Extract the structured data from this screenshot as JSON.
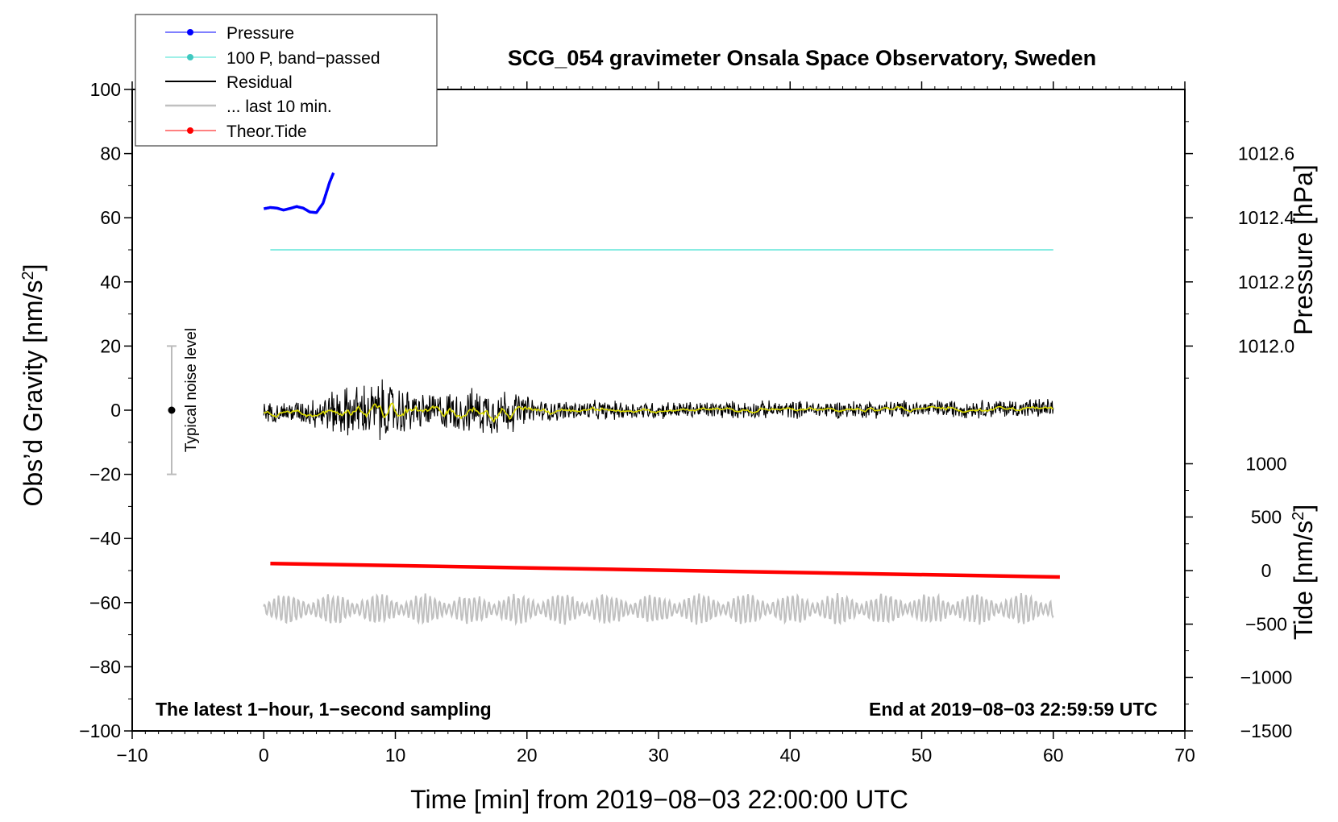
{
  "chart_data": {
    "type": "line",
    "title": "SCG_054 gravimeter Onsala Space Observatory, Sweden",
    "xlabel": "Time [min] from 2019−08−03 22:00:00 UTC",
    "ylabel_left": "Obs’d Gravity [nm/s²]",
    "ylabel_right_pressure": "Pressure [hPa]",
    "ylabel_right_tide": "Tide [nm/s²]",
    "note_left": "The latest 1−hour, 1−second sampling",
    "note_right": "End at 2019−08−03 22:59:59 UTC",
    "noise_label": "Typical noise level",
    "xlim": [
      -10,
      70
    ],
    "ylim": [
      -100,
      100
    ],
    "grid": false,
    "legend_position": "top-left",
    "x_ticks": [
      -10,
      0,
      10,
      20,
      30,
      40,
      50,
      60,
      70
    ],
    "x_tick_labels": [
      "−10",
      "0",
      "10",
      "20",
      "30",
      "40",
      "50",
      "60",
      "70"
    ],
    "y_ticks": [
      -100,
      -80,
      -60,
      -40,
      -20,
      0,
      20,
      40,
      60,
      80,
      100
    ],
    "y_tick_labels": [
      "−100",
      "−80",
      "−60",
      "−40",
      "−20",
      "0",
      "20",
      "40",
      "60",
      "80",
      "100"
    ],
    "pressure_axis": {
      "ticks": [
        1012.0,
        1012.2,
        1012.4,
        1012.6
      ],
      "tick_labels": [
        "1012.0",
        "1012.2",
        "1012.4",
        "1012.6"
      ],
      "gravity_equiv": [
        20,
        40,
        60,
        80
      ]
    },
    "tide_axis": {
      "ticks": [
        1000,
        500,
        0,
        -500,
        -1000,
        -1500
      ],
      "tick_labels": [
        "1000",
        "500",
        "0",
        "−500",
        "−1000",
        "−1500"
      ],
      "gravity_equiv": [
        -16.7,
        -33.3,
        -50,
        -66.7,
        -83.3,
        -100
      ]
    },
    "noise_level": {
      "x": -7,
      "center": 0,
      "low": -20,
      "high": 20
    },
    "series": [
      {
        "name": "Pressure",
        "color": "#0000ff",
        "x": [
          0,
          0.5,
          1,
          1.5,
          2,
          2.5,
          3,
          3.5,
          4,
          4.5,
          5,
          5.3
        ],
        "y": [
          62.8,
          63.2,
          63.0,
          62.4,
          62.9,
          63.5,
          63.0,
          61.8,
          61.6,
          64.5,
          71.0,
          74.0
        ]
      },
      {
        "name": "100 P, band−passed",
        "color": "#40e0d0",
        "x": [
          0.5,
          60
        ],
        "y": [
          50,
          50
        ]
      },
      {
        "name": "Residual",
        "color": "#000000",
        "x_range": [
          0,
          60
        ],
        "envelope": {
          "x": [
            0,
            3,
            6,
            9,
            12,
            15,
            18,
            21,
            30,
            40,
            50,
            60
          ],
          "amp": [
            2.5,
            3.5,
            7,
            9,
            5,
            6,
            7,
            3,
            2.5,
            2.5,
            2.5,
            2.8
          ]
        }
      },
      {
        "name": "... last 10 min.",
        "color": "#c0c0c0",
        "x_range": [
          0,
          60
        ],
        "center": -62
      },
      {
        "name": "Theor.Tide",
        "color": "#ff0000",
        "x": [
          0.5,
          60.5
        ],
        "y": [
          -47.8,
          -52.0
        ]
      },
      {
        "smooth_of": "Residual",
        "color": "#dddd00",
        "x_range": [
          0,
          60
        ]
      }
    ]
  }
}
